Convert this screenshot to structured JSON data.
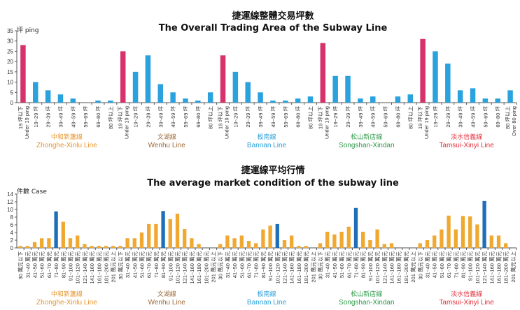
{
  "chart_data": [
    {
      "type": "bar",
      "title": "捷運線整體交易坪數",
      "subtitle": "The Overall Trading Area of the Subway Line",
      "ylabel": "坪 ping",
      "ylim": [
        0,
        35
      ],
      "yticks": [
        0,
        5,
        10,
        15,
        20,
        25,
        30,
        35
      ],
      "groups": [
        {
          "name_zh": "中和新蘆線",
          "name_en": "Zhonghe-Xinlu Line",
          "color": "#e8962e",
          "categories": [
            "19 坪以下 Under 19 ping",
            "19~29 坪",
            "29~39 坪",
            "39~49 坪",
            "49~59 坪",
            "59~69 坪",
            "69~80 坪",
            "80 坪以上"
          ],
          "values": [
            28,
            10,
            6,
            4,
            2,
            0,
            1,
            1
          ]
        },
        {
          "name_zh": "文湖線",
          "name_en": "Wenhu Line",
          "color": "#9c6b3a",
          "categories": [
            "19 坪以下 Under 19 ping",
            "19~29 坪",
            "29~39 坪",
            "39~49 坪",
            "49~59 坪",
            "59~69 坪",
            "69~80 坪",
            "80 坪以上"
          ],
          "values": [
            25,
            15,
            23,
            9,
            5,
            2,
            1,
            5
          ]
        },
        {
          "name_zh": "板南線",
          "name_en": "Bannan Line",
          "color": "#2a9fd8",
          "categories": [
            "19 坪以下 Under 19 ping",
            "19~29 坪",
            "29~39 坪",
            "39~49 坪",
            "49~59 坪",
            "59~69 坪",
            "69~80 坪",
            "80 坪以上"
          ],
          "values": [
            23,
            15,
            10,
            5,
            1,
            1,
            2,
            3
          ]
        },
        {
          "name_zh": "松山新店線",
          "name_en": "Songshan-Xindan",
          "color": "#2e9a4a",
          "categories": [
            "19 坪以下 Under 19 ping",
            "19~29 坪",
            "29~39 坪",
            "39~49 坪",
            "49~59 坪",
            "59~69 坪",
            "69~80 坪",
            "80 坪以上"
          ],
          "values": [
            29,
            13,
            13,
            2,
            3,
            0,
            3,
            4
          ]
        },
        {
          "name_zh": "淡水信義線",
          "name_en": "Tamsui-Xinyi Line",
          "color": "#e0323c",
          "categories": [
            "19 坪以下 Under 19 ping",
            "19~29 坪",
            "29~39 坪",
            "39~49 坪",
            "49~59 坪",
            "59~69 坪",
            "69~80 坪",
            "80 坪以上 Over 80 ping"
          ],
          "values": [
            31,
            25,
            19,
            6,
            7,
            2,
            2,
            6
          ]
        }
      ],
      "highlight_color": "#d6336c",
      "bar_color": "#2aa2dd"
    },
    {
      "type": "bar",
      "title": "捷運線平均行情",
      "subtitle": "The average market condition of the subway line",
      "ylabel": "件數 Case",
      "ylim": [
        0,
        14
      ],
      "yticks": [
        0,
        2,
        4,
        6,
        8,
        10,
        12,
        14
      ],
      "groups": [
        {
          "name_zh": "中和新蘆線",
          "name_en": "Zhonghe-Xinlu Line",
          "color": "#e8962e",
          "categories": [
            "30 萬元以下",
            "31~40 萬元",
            "41~50 萬元",
            "51~60 萬元",
            "61~70 萬元",
            "71~80 萬元",
            "81~90 萬元",
            "91~100 萬元",
            "101~120 萬元",
            "121~140 萬元",
            "141~160 萬元",
            "161~180 萬元",
            "181~200 萬元",
            "201 萬元以上"
          ],
          "values": [
            0.5,
            0.5,
            1.5,
            2.5,
            2.5,
            9.5,
            6.8,
            2.5,
            3.2,
            1,
            0.5,
            0.5,
            0.5,
            0.5
          ],
          "peak_index": 5
        },
        {
          "name_zh": "文湖線",
          "name_en": "Wenhu Line",
          "color": "#9c6b3a",
          "categories": [
            "30 萬元以下",
            "31~40 萬元",
            "41~50 萬元",
            "51~60 萬元",
            "61~70 萬元",
            "71~80 萬元",
            "81~90 萬元",
            "91~100 萬元",
            "101~120 萬元",
            "121~140 萬元",
            "141~160 萬元",
            "161~180 萬元",
            "181~200 萬元",
            "201 萬元以上"
          ],
          "values": [
            0.5,
            2.5,
            2.5,
            4,
            6.2,
            6.2,
            9.6,
            7.5,
            8.9,
            4.9,
            2.5,
            1,
            0,
            0
          ],
          "peak_index": 6
        },
        {
          "name_zh": "板南線",
          "name_en": "Bannan Line",
          "color": "#2a9fd8",
          "categories": [
            "30 萬元以下",
            "31~40 萬元",
            "41~50 萬元",
            "51~60 萬元",
            "61~70 萬元",
            "71~80 萬元",
            "81~90 萬元",
            "91~100 萬元",
            "101~120 萬元",
            "121~140 萬元",
            "141~160 萬元",
            "161~180 萬元",
            "181~200 萬元",
            "201 萬元以上"
          ],
          "values": [
            1,
            3.2,
            2.5,
            3.2,
            1.8,
            1.2,
            4.8,
            5.8,
            6.2,
            2,
            3.2,
            0.5,
            0.5,
            0
          ],
          "peak_index": 8
        },
        {
          "name_zh": "松山新店線",
          "name_en": "Songshan-Xindan",
          "color": "#2e9a4a",
          "categories": [
            "30 萬元以下",
            "31~40 萬元",
            "41~50 萬元",
            "51~60 萬元",
            "61~70 萬元",
            "71~80 萬元",
            "81~90 萬元",
            "91~100 萬元",
            "101~120 萬元",
            "121~140 萬元",
            "141~160 萬元",
            "161~180 萬元",
            "181~200 萬元",
            "201 萬元以上"
          ],
          "values": [
            1.2,
            4.2,
            3.5,
            4.2,
            5.5,
            10.4,
            4.2,
            2,
            4.8,
            1,
            1.2,
            0,
            0,
            0
          ],
          "peak_index": 5
        },
        {
          "name_zh": "淡水信義線",
          "name_en": "Tamsui-Xinyi Line",
          "color": "#e0323c",
          "categories": [
            "30 萬元以下",
            "31~40 萬元",
            "41~50 萬元",
            "51~60 萬元",
            "61~70 萬元",
            "71~80 萬元",
            "81~90 萬元",
            "91~100 萬元",
            "101~120 萬元",
            "121~140 萬元",
            "141~160 萬元",
            "161~180 萬元",
            "181~200 萬元",
            "201 萬元以上"
          ],
          "values": [
            1.2,
            2,
            3.2,
            4.8,
            8.4,
            4.8,
            8.3,
            8.2,
            6.1,
            12.2,
            3.2,
            3.2,
            1.2,
            0
          ],
          "peak_index": 9
        }
      ],
      "bar_color": "#f0a830",
      "highlight_color": "#1f6fb8"
    }
  ]
}
